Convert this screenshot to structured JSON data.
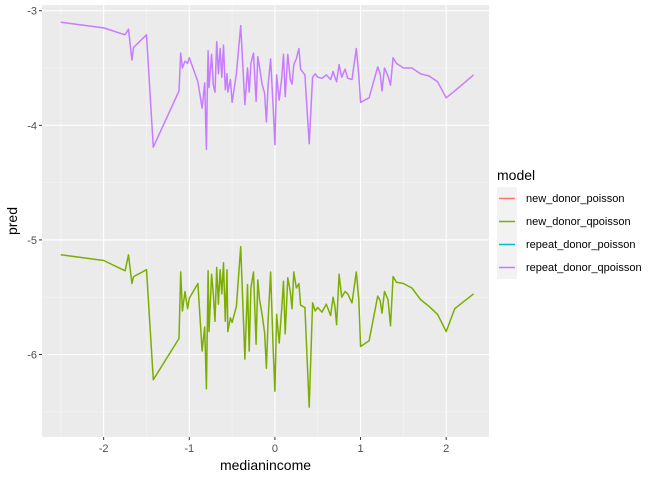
{
  "chart_data": {
    "type": "line",
    "xlabel": "medianincome",
    "ylabel": "pred",
    "xlim": [
      -2.72,
      2.5
    ],
    "ylim": [
      -6.72,
      -2.95
    ],
    "x_ticks": [
      -2,
      -1,
      0,
      1,
      2
    ],
    "x_tick_labels": [
      "-2",
      "-1",
      "0",
      "1",
      "2"
    ],
    "y_ticks": [
      -6,
      -5,
      -4,
      -3
    ],
    "y_tick_labels": [
      "-6",
      "-5",
      "-4",
      "-3"
    ],
    "grid": true,
    "legend": {
      "title": "model",
      "placement": "right",
      "entries": [
        "new_donor_poisson",
        "new_donor_qpoisson",
        "repeat_donor_poisson",
        "repeat_donor_qpoisson"
      ]
    },
    "series": [
      {
        "name": "new_donor_poisson",
        "color": "#F8766D",
        "x": [],
        "y": []
      },
      {
        "name": "new_donor_qpoisson",
        "color": "#7CAE00",
        "x": [
          -2.5,
          -2.0,
          -1.75,
          -1.71,
          -1.67,
          -1.65,
          -1.5,
          -1.42,
          -1.12,
          -1.1,
          -1.08,
          -1.05,
          -1.02,
          -1.0,
          -0.9,
          -0.85,
          -0.82,
          -0.8,
          -0.79,
          -0.78,
          -0.77,
          -0.74,
          -0.72,
          -0.7,
          -0.68,
          -0.66,
          -0.64,
          -0.62,
          -0.6,
          -0.58,
          -0.56,
          -0.55,
          -0.52,
          -0.5,
          -0.45,
          -0.4,
          -0.35,
          -0.32,
          -0.3,
          -0.28,
          -0.25,
          -0.22,
          -0.2,
          -0.18,
          -0.15,
          -0.12,
          -0.1,
          -0.08,
          -0.05,
          -0.02,
          0.0,
          0.02,
          0.05,
          0.08,
          0.1,
          0.12,
          0.15,
          0.18,
          0.2,
          0.22,
          0.25,
          0.28,
          0.3,
          0.35,
          0.4,
          0.44,
          0.47,
          0.5,
          0.55,
          0.6,
          0.65,
          0.68,
          0.7,
          0.72,
          0.75,
          0.78,
          0.82,
          0.85,
          0.9,
          0.95,
          0.98,
          1.0,
          1.1,
          1.2,
          1.23,
          1.25,
          1.28,
          1.32,
          1.35,
          1.38,
          1.42,
          1.5,
          1.6,
          1.7,
          1.8,
          1.9,
          2.0,
          2.1,
          2.32
        ],
        "y": [
          -5.13,
          -5.18,
          -5.27,
          -5.13,
          -5.38,
          -5.32,
          -5.26,
          -6.22,
          -5.86,
          -5.28,
          -5.62,
          -5.45,
          -5.6,
          -5.51,
          -5.38,
          -5.97,
          -5.76,
          -6.3,
          -5.78,
          -5.27,
          -5.8,
          -5.3,
          -5.47,
          -5.71,
          -5.24,
          -5.56,
          -5.26,
          -5.47,
          -5.2,
          -5.71,
          -5.26,
          -5.8,
          -5.68,
          -5.72,
          -5.58,
          -5.06,
          -6.04,
          -5.39,
          -5.97,
          -5.42,
          -5.28,
          -5.91,
          -5.35,
          -5.52,
          -5.65,
          -5.81,
          -6.12,
          -5.7,
          -5.28,
          -5.96,
          -6.32,
          -5.65,
          -5.9,
          -5.59,
          -5.36,
          -5.82,
          -5.33,
          -5.45,
          -5.6,
          -5.28,
          -5.42,
          -5.38,
          -5.57,
          -5.59,
          -6.46,
          -5.55,
          -5.62,
          -5.59,
          -5.63,
          -5.56,
          -5.66,
          -5.5,
          -5.58,
          -5.74,
          -5.3,
          -5.5,
          -5.45,
          -5.47,
          -5.55,
          -5.28,
          -5.52,
          -5.93,
          -5.88,
          -5.49,
          -5.53,
          -5.64,
          -5.45,
          -5.52,
          -5.75,
          -5.32,
          -5.37,
          -5.38,
          -5.42,
          -5.52,
          -5.58,
          -5.65,
          -5.8,
          -5.6,
          -5.47
        ]
      },
      {
        "name": "repeat_donor_poisson",
        "color": "#00BFC4",
        "x": [],
        "y": []
      },
      {
        "name": "repeat_donor_qpoisson",
        "color": "#C77CFF",
        "x": [
          -2.5,
          -2.0,
          -1.75,
          -1.71,
          -1.67,
          -1.65,
          -1.5,
          -1.42,
          -1.12,
          -1.1,
          -1.08,
          -1.05,
          -1.02,
          -1.0,
          -0.9,
          -0.85,
          -0.82,
          -0.8,
          -0.79,
          -0.78,
          -0.77,
          -0.74,
          -0.72,
          -0.7,
          -0.68,
          -0.66,
          -0.64,
          -0.62,
          -0.6,
          -0.58,
          -0.56,
          -0.55,
          -0.52,
          -0.5,
          -0.45,
          -0.4,
          -0.35,
          -0.32,
          -0.3,
          -0.28,
          -0.25,
          -0.22,
          -0.2,
          -0.18,
          -0.15,
          -0.12,
          -0.1,
          -0.08,
          -0.05,
          -0.02,
          0.0,
          0.02,
          0.05,
          0.08,
          0.1,
          0.12,
          0.15,
          0.18,
          0.2,
          0.22,
          0.25,
          0.28,
          0.3,
          0.35,
          0.4,
          0.44,
          0.47,
          0.5,
          0.55,
          0.6,
          0.65,
          0.68,
          0.7,
          0.72,
          0.75,
          0.78,
          0.82,
          0.85,
          0.9,
          0.95,
          0.98,
          1.0,
          1.1,
          1.2,
          1.23,
          1.25,
          1.28,
          1.32,
          1.35,
          1.38,
          1.42,
          1.5,
          1.6,
          1.7,
          1.8,
          1.9,
          2.0,
          2.1,
          2.32
        ],
        "y": [
          -3.1,
          -3.15,
          -3.21,
          -3.16,
          -3.43,
          -3.32,
          -3.21,
          -4.19,
          -3.7,
          -3.37,
          -3.5,
          -3.44,
          -3.46,
          -3.41,
          -3.62,
          -3.85,
          -3.63,
          -4.21,
          -3.71,
          -3.35,
          -3.67,
          -3.38,
          -3.65,
          -3.71,
          -3.27,
          -3.55,
          -3.33,
          -3.58,
          -3.3,
          -3.69,
          -3.55,
          -3.71,
          -3.6,
          -3.8,
          -3.55,
          -3.13,
          -3.82,
          -3.5,
          -3.71,
          -3.46,
          -3.37,
          -3.79,
          -3.4,
          -3.49,
          -3.64,
          -3.72,
          -3.97,
          -3.65,
          -3.42,
          -3.85,
          -4.17,
          -3.56,
          -3.78,
          -3.58,
          -3.38,
          -3.75,
          -3.38,
          -3.6,
          -3.64,
          -3.47,
          -3.42,
          -3.33,
          -3.51,
          -3.56,
          -4.16,
          -3.58,
          -3.55,
          -3.58,
          -3.59,
          -3.56,
          -3.6,
          -3.53,
          -3.58,
          -3.62,
          -3.47,
          -3.58,
          -3.51,
          -3.59,
          -3.6,
          -3.33,
          -3.56,
          -3.8,
          -3.76,
          -3.49,
          -3.55,
          -3.7,
          -3.5,
          -3.57,
          -3.65,
          -3.41,
          -3.46,
          -3.5,
          -3.5,
          -3.55,
          -3.57,
          -3.62,
          -3.76,
          -3.7,
          -3.56
        ]
      }
    ]
  }
}
